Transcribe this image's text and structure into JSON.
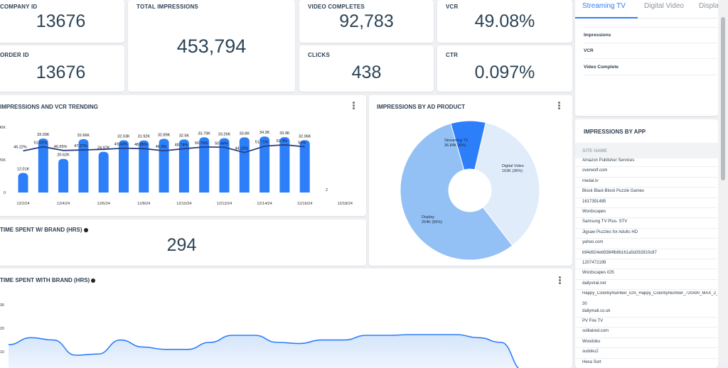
{
  "kpis": {
    "company_id": {
      "label": "COMPANY ID",
      "value": "13676"
    },
    "order_id": {
      "label": "ORDER ID",
      "value": "13676"
    },
    "total_impressions": {
      "label": "TOTAL IMPRESSIONS",
      "value": "453,794"
    },
    "video_completes": {
      "label": "VIDEO COMPLETES",
      "value": "92,783"
    },
    "vcr": {
      "label": "VCR",
      "value": "49.08%"
    },
    "clicks": {
      "label": "CLICKS",
      "value": "438"
    },
    "ctr": {
      "label": "CTR",
      "value": "0.097%"
    }
  },
  "trend": {
    "title": "IMPRESSIONS AND VCR TRENDING",
    "y_ticks": [
      "40K",
      "20K",
      "0"
    ],
    "x_ticks": [
      "12/2/24",
      "12/4/24",
      "12/6/24",
      "12/8/24",
      "12/10/24",
      "12/12/24",
      "12/14/24",
      "12/16/24",
      "12/18/24"
    ],
    "trailing_label": "2",
    "colors": {
      "bar": "#2d7ff9",
      "line": "#2c3e80"
    }
  },
  "chart_data": [
    {
      "type": "bar",
      "title": "IMPRESSIONS AND VCR TRENDING",
      "bar_labels": [
        "12.01K",
        "33.03K",
        "20.62K",
        "32.66K",
        "24.97K",
        "32.03K",
        "31.92K",
        "32.89K",
        "32.5K",
        "33.79K",
        "33.26K",
        "33.8K",
        "34.3K",
        "33.9K",
        "32.06K"
      ],
      "line_labels": [
        "46.22%",
        "51.02%",
        "46.65%",
        "47.27%",
        "",
        "49.34%",
        "48.85%",
        "46.3%",
        "48.74%",
        "50.76%",
        "50.44%",
        "44.22%",
        "51.71%",
        "53.3%",
        "51%"
      ],
      "series": [
        {
          "name": "Impressions",
          "values": [
            12010,
            33030,
            20620,
            32660,
            24970,
            32030,
            31920,
            32890,
            32500,
            33790,
            33260,
            33800,
            34300,
            33900,
            32060
          ]
        },
        {
          "name": "VCR",
          "values": [
            46.22,
            51.02,
            46.65,
            47.27,
            48.0,
            49.34,
            48.85,
            46.3,
            48.74,
            50.76,
            50.44,
            44.22,
            51.71,
            53.3,
            51.0
          ]
        }
      ],
      "ylim": [
        0,
        40000
      ]
    },
    {
      "type": "pie",
      "title": "IMPRESSIONS BY AD PRODUCT",
      "slices": [
        {
          "name": "Streaming TV",
          "label": "36.84K (8%)",
          "value": 36840,
          "color": "#2d7ff9"
        },
        {
          "name": "Digital Video",
          "label": "163K (36%)",
          "value": 163000,
          "color": "#e1ecfb"
        },
        {
          "name": "Display",
          "label": "254K (56%)",
          "value": 254000,
          "color": "#93c0f5"
        }
      ]
    },
    {
      "type": "area",
      "title": "TIME SPENT WITH BRAND (HRS)",
      "y_ticks": [
        "30",
        "20",
        "10"
      ],
      "ylim": [
        0,
        34
      ],
      "values": [
        13,
        16,
        15,
        8.5,
        9,
        15,
        12,
        11,
        11,
        14,
        17,
        17,
        14,
        13.5,
        15,
        15,
        17,
        17,
        17.3,
        17.3,
        17.3,
        16,
        14,
        2
      ],
      "colors": {
        "line": "#2d7ff9",
        "fill_top": "#d5e5fb",
        "fill_bottom": "#f4f8fe"
      }
    }
  ],
  "ad_product": {
    "title": "IMPRESSIONS BY AD PRODUCT",
    "streaming_name": "Streaming TV",
    "streaming_value": "36.84K (8%)",
    "digital_name": "Digital Video",
    "digital_value": "163K (36%)",
    "display_name": "Display",
    "display_value": "254K (56%)"
  },
  "time_spent": {
    "title": "TIME SPENT W/ BRAND (HRS)",
    "value": "294"
  },
  "time_spent_chart": {
    "title": "TIME SPENT WITH BRAND (HRS)",
    "y_ticks": [
      "30",
      "20",
      "10"
    ]
  },
  "tabs": {
    "items": [
      "Streaming TV",
      "Digital Video",
      "Display"
    ],
    "active": "Streaming TV"
  },
  "metrics": [
    "Impressions",
    "VCR",
    "Video Complete"
  ],
  "apps": {
    "title": "IMPRESSIONS BY APP",
    "column": "SITE NAME",
    "rows": [
      "Amazon Publisher Services",
      "overwolf.com",
      "medal.tv",
      "Block Blast-Block Puzzle Games",
      "1617391485",
      "Wordscapes",
      "Samsung TV Plus- STV",
      "Jigsaw Puzzles for Adults HD",
      "yahoo.com",
      "b94d924eb5984fb8b161a5d292810c87",
      "1207472199",
      "Wordscapes iOS",
      "dailyviral.net",
      "Happy_ColorbyNumber_iOS_Happy_ColorbyNumber_720x90_MAX_2_i",
      "30",
      "dailymail.co.uk",
      "PV Fire TV",
      "solitaired.com",
      "Woodoku",
      "sudoku2",
      "Hexa Sort"
    ]
  }
}
